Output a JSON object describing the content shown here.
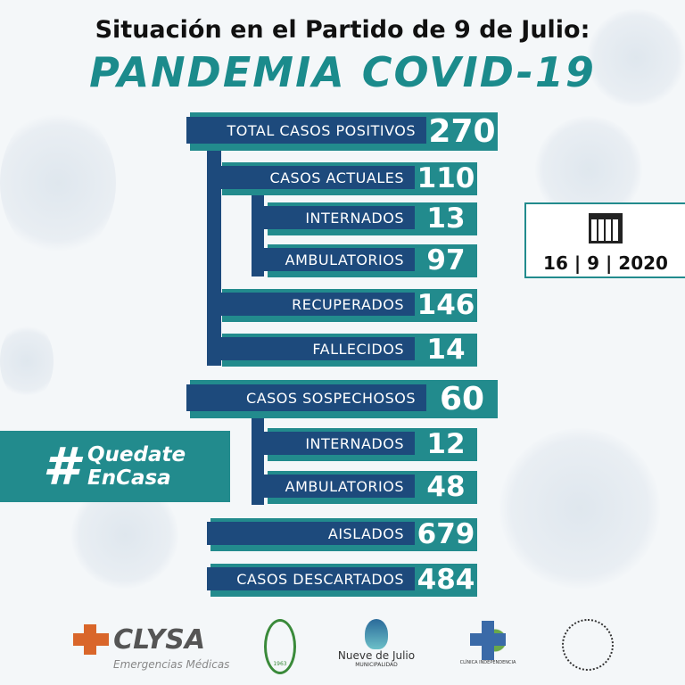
{
  "header": {
    "subtitle": "Situación en el Partido de 9 de Julio:",
    "title": "PANDEMIA COVID-19"
  },
  "stats": [
    {
      "label": "TOTAL CASOS POSITIVOS",
      "value": "270"
    },
    {
      "label": "CASOS ACTUALES",
      "value": "110"
    },
    {
      "label": "INTERNADOS",
      "value": "13"
    },
    {
      "label": "AMBULATORIOS",
      "value": "97"
    },
    {
      "label": "RECUPERADOS",
      "value": "146"
    },
    {
      "label": "FALLECIDOS",
      "value": "14"
    },
    {
      "label": "CASOS SOSPECHOSOS",
      "value": "60"
    },
    {
      "label": "INTERNADOS",
      "value": "12"
    },
    {
      "label": "AMBULATORIOS",
      "value": "48"
    },
    {
      "label": "AISLADOS",
      "value": "679"
    },
    {
      "label": "CASOS DESCARTADOS",
      "value": "484"
    }
  ],
  "date": {
    "icon": "calendar-icon",
    "day": "16",
    "month": "9",
    "year": "2020"
  },
  "hashtag": {
    "symbol": "#",
    "line1": "Quedate",
    "line2": "EnCasa"
  },
  "logos": {
    "clysa": "CLYSA",
    "clysa_sub": "Emergencias Médicas",
    "circulo_year": "1963",
    "nueve": "Nueve de Julio",
    "nueve_sub": "MUNICIPALIDAD",
    "clinica": "CLÍNICA INDEPENDENCIA"
  },
  "colors": {
    "navy": "#1d4a7c",
    "teal": "#228b8d"
  }
}
